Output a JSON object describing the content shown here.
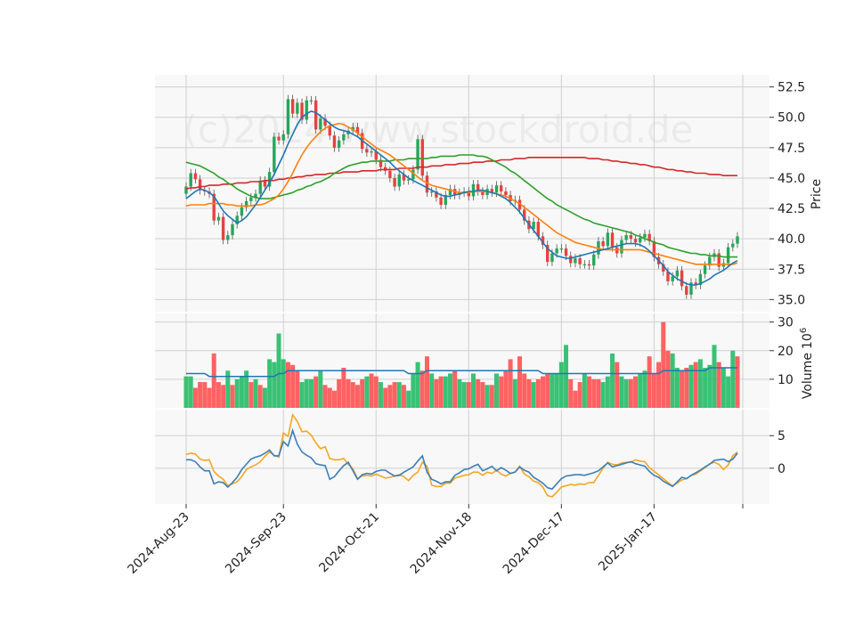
{
  "watermark": "(c)2024 www.stockdroid.de",
  "colors": {
    "panel_bg": "#f8f8f8",
    "grid": "#d0d0d0",
    "up": "#26a65b",
    "down": "#e8413f",
    "up_vol": "#2ebf6e",
    "down_vol": "#ff5a5a",
    "ma_short": "#1f77b4",
    "ma_mid": "#ff7f0e",
    "ma_long": "#2ca02c",
    "ma_200": "#d62728",
    "vol_ma": "#1f77b4",
    "osc_a": "#3a7fb8",
    "osc_b": "#f5a623"
  },
  "chart_data": {
    "type": "candlestick",
    "x_labels": [
      "2024-Aug-23",
      "2024-Sep-23",
      "2024-Oct-21",
      "2024-Nov-18",
      "2024-Dec-17",
      "2025-Jan-17"
    ],
    "x_label_index": [
      0,
      21,
      41,
      61,
      81,
      101
    ],
    "n": 120,
    "price": {
      "ylabel": "Price",
      "ylim": [
        34.0,
        53.5
      ],
      "ticks": [
        "35.0",
        "37.5",
        "40.0",
        "42.5",
        "45.0",
        "47.5",
        "50.0",
        "52.5"
      ],
      "tick_values": [
        35.0,
        37.5,
        40.0,
        42.5,
        45.0,
        47.5,
        50.0,
        52.5
      ],
      "close": [
        44.3,
        45.4,
        44.9,
        44.0,
        43.9,
        43.7,
        41.5,
        41.8,
        39.9,
        40.3,
        41.2,
        41.9,
        42.6,
        43.1,
        43.4,
        43.7,
        44.8,
        44.3,
        45.5,
        48.4,
        48.1,
        48.6,
        51.5,
        50.3,
        51.2,
        49.8,
        51.4,
        51.4,
        49.0,
        49.9,
        49.3,
        48.5,
        47.5,
        48.1,
        48.6,
        48.9,
        49.2,
        48.7,
        47.4,
        47.1,
        47.2,
        46.5,
        45.9,
        45.6,
        45.0,
        44.3,
        45.3,
        44.8,
        44.9,
        45.7,
        48.2,
        45.2,
        43.8,
        43.9,
        43.4,
        42.8,
        43.6,
        44.1,
        43.6,
        43.8,
        43.9,
        43.5,
        44.5,
        43.9,
        43.6,
        44.1,
        43.8,
        44.4,
        43.9,
        43.6,
        43.1,
        43.2,
        42.4,
        41.5,
        40.8,
        41.4,
        40.2,
        39.5,
        38.1,
        38.8,
        39.2,
        39.2,
        38.6,
        38.0,
        38.4,
        37.9,
        37.9,
        37.8,
        38.7,
        39.8,
        39.4,
        40.5,
        39.3,
        38.8,
        39.9,
        40.3,
        40.0,
        39.7,
        40.1,
        40.4,
        39.8,
        38.5,
        37.9,
        37.3,
        36.5,
        36.9,
        37.4,
        36.1,
        35.4,
        36.4,
        36.2,
        37.1,
        37.8,
        38.5,
        38.8,
        37.7,
        38.0,
        39.3,
        39.6,
        40.2
      ],
      "ma_short": [
        43.3,
        43.6,
        43.9,
        44.1,
        44.0,
        43.8,
        43.5,
        42.9,
        42.3,
        41.9,
        41.6,
        41.3,
        41.5,
        41.8,
        42.3,
        42.8,
        43.4,
        44.0,
        44.6,
        45.3,
        46.1,
        46.9,
        47.8,
        48.6,
        49.4,
        50.0,
        50.3,
        50.5,
        50.4,
        50.1,
        49.8,
        49.5,
        49.2,
        49.0,
        48.9,
        48.8,
        48.6,
        48.4,
        48.1,
        47.8,
        47.5,
        47.2,
        46.9,
        46.6,
        46.3,
        45.9,
        45.6,
        45.3,
        45.0,
        44.8,
        44.6,
        44.4,
        44.2,
        44.0,
        43.8,
        43.6,
        43.5,
        43.5,
        43.6,
        43.7,
        43.8,
        43.9,
        43.9,
        44.0,
        44.0,
        43.9,
        43.8,
        43.7,
        43.5,
        43.3,
        43.0,
        42.6,
        42.2,
        41.7,
        41.2,
        40.7,
        40.2,
        39.7,
        39.2,
        38.9,
        38.6,
        38.5,
        38.4,
        38.4,
        38.5,
        38.6,
        38.7,
        38.8,
        38.9,
        39.0,
        39.1,
        39.2,
        39.3,
        39.4,
        39.5,
        39.6,
        39.6,
        39.6,
        39.5,
        39.3,
        39.0,
        38.6,
        38.2,
        37.8,
        37.3,
        37.0,
        36.7,
        36.5,
        36.3,
        36.2,
        36.2,
        36.3,
        36.5,
        36.7,
        37.0,
        37.2,
        37.4,
        37.7,
        38.0,
        38.2
      ],
      "ma_mid": [
        42.7,
        42.8,
        42.8,
        42.8,
        42.8,
        42.9,
        42.9,
        42.9,
        42.9,
        42.8,
        42.8,
        42.7,
        42.7,
        42.7,
        42.7,
        42.8,
        42.8,
        42.9,
        43.1,
        43.3,
        43.6,
        44.1,
        44.7,
        45.4,
        46.2,
        46.9,
        47.5,
        48.0,
        48.4,
        48.8,
        49.1,
        49.3,
        49.4,
        49.5,
        49.4,
        49.2,
        49.0,
        48.7,
        48.4,
        48.1,
        47.8,
        47.5,
        47.3,
        47.1,
        46.9,
        46.6,
        46.3,
        46.0,
        45.7,
        45.4,
        45.1,
        44.8,
        44.6,
        44.4,
        44.3,
        44.2,
        44.1,
        44.0,
        43.9,
        43.8,
        43.8,
        43.8,
        43.9,
        43.9,
        43.9,
        43.9,
        43.8,
        43.7,
        43.6,
        43.5,
        43.3,
        43.1,
        42.9,
        42.6,
        42.3,
        42.0,
        41.7,
        41.4,
        41.1,
        40.8,
        40.5,
        40.3,
        40.1,
        39.9,
        39.7,
        39.6,
        39.5,
        39.4,
        39.3,
        39.2,
        39.1,
        39.1,
        39.1,
        39.1,
        39.1,
        39.1,
        39.1,
        39.1,
        39.1,
        39.0,
        38.9,
        38.8,
        38.7,
        38.6,
        38.5,
        38.4,
        38.3,
        38.2,
        38.1,
        38.0,
        37.9,
        37.9,
        37.9,
        37.9,
        37.9,
        37.9,
        37.9,
        37.9,
        37.9,
        38.0
      ],
      "ma_long": [
        46.3,
        46.2,
        46.1,
        46.0,
        45.8,
        45.6,
        45.4,
        45.1,
        44.9,
        44.6,
        44.4,
        44.1,
        43.9,
        43.7,
        43.5,
        43.4,
        43.3,
        43.3,
        43.3,
        43.4,
        43.5,
        43.6,
        43.7,
        43.8,
        44.0,
        44.1,
        44.3,
        44.4,
        44.6,
        44.7,
        44.9,
        45.1,
        45.4,
        45.6,
        45.8,
        46.0,
        46.1,
        46.2,
        46.3,
        46.3,
        46.4,
        46.4,
        46.4,
        46.4,
        46.4,
        46.5,
        46.5,
        46.5,
        46.6,
        46.6,
        46.6,
        46.6,
        46.6,
        46.7,
        46.7,
        46.8,
        46.8,
        46.8,
        46.8,
        46.9,
        46.9,
        46.9,
        46.9,
        46.8,
        46.8,
        46.7,
        46.5,
        46.3,
        46.1,
        45.9,
        45.6,
        45.4,
        45.1,
        44.8,
        44.5,
        44.2,
        43.9,
        43.6,
        43.3,
        43.1,
        42.8,
        42.6,
        42.4,
        42.2,
        42.0,
        41.8,
        41.6,
        41.5,
        41.3,
        41.2,
        41.1,
        41.0,
        40.9,
        40.8,
        40.7,
        40.6,
        40.5,
        40.3,
        40.2,
        40.0,
        39.9,
        39.7,
        39.6,
        39.5,
        39.3,
        39.2,
        39.1,
        39.0,
        38.9,
        38.8,
        38.8,
        38.7,
        38.7,
        38.6,
        38.6,
        38.6,
        38.5,
        38.5,
        38.5,
        38.5
      ],
      "ma_200": [
        44.1,
        44.2,
        44.2,
        44.3,
        44.3,
        44.4,
        44.4,
        44.4,
        44.5,
        44.5,
        44.5,
        44.6,
        44.6,
        44.6,
        44.7,
        44.7,
        44.7,
        44.8,
        44.8,
        44.8,
        44.9,
        44.9,
        45.0,
        45.0,
        45.1,
        45.1,
        45.2,
        45.2,
        45.3,
        45.3,
        45.3,
        45.4,
        45.4,
        45.4,
        45.5,
        45.5,
        45.5,
        45.5,
        45.6,
        45.6,
        45.6,
        45.6,
        45.7,
        45.7,
        45.7,
        45.7,
        45.8,
        45.8,
        45.8,
        45.8,
        45.9,
        45.9,
        45.9,
        46.0,
        46.0,
        46.0,
        46.1,
        46.1,
        46.1,
        46.2,
        46.2,
        46.2,
        46.3,
        46.3,
        46.3,
        46.4,
        46.4,
        46.4,
        46.5,
        46.5,
        46.5,
        46.6,
        46.6,
        46.6,
        46.7,
        46.7,
        46.7,
        46.7,
        46.7,
        46.7,
        46.7,
        46.7,
        46.7,
        46.7,
        46.7,
        46.7,
        46.7,
        46.6,
        46.6,
        46.6,
        46.5,
        46.5,
        46.4,
        46.4,
        46.3,
        46.3,
        46.2,
        46.2,
        46.1,
        46.1,
        46.0,
        45.9,
        45.9,
        45.8,
        45.7,
        45.7,
        45.6,
        45.6,
        45.5,
        45.5,
        45.4,
        45.4,
        45.4,
        45.3,
        45.3,
        45.3,
        45.2,
        45.2,
        45.2,
        45.2
      ]
    },
    "volume": {
      "ylabel": "Volume  10^6",
      "ylabel_main": "Volume",
      "ylabel_exp": "6",
      "ylim": [
        0,
        33
      ],
      "ticks": [
        "10",
        "20",
        "30"
      ],
      "tick_values": [
        10,
        20,
        30
      ],
      "values": [
        11,
        11,
        7,
        9,
        9,
        7,
        19,
        9,
        8,
        13,
        8,
        10,
        11,
        13,
        9,
        10,
        8,
        7,
        17,
        16,
        26,
        17,
        16,
        15,
        13,
        9,
        10,
        10,
        11,
        13,
        8,
        7,
        6,
        10,
        14,
        10,
        9,
        8,
        10,
        11,
        12,
        11,
        9,
        7,
        8,
        9,
        9,
        8,
        6,
        12,
        16,
        13,
        18,
        12,
        10,
        11,
        11,
        12,
        13,
        10,
        9,
        9,
        12,
        10,
        9,
        8,
        8,
        12,
        11,
        13,
        17,
        10,
        18,
        12,
        10,
        9,
        10,
        11,
        12,
        12,
        12,
        16,
        22,
        10,
        6,
        9,
        12,
        11,
        10,
        10,
        9,
        11,
        19,
        16,
        11,
        10,
        10,
        11,
        12,
        13,
        18,
        12,
        16,
        30,
        20,
        19,
        14,
        13,
        14,
        15,
        16,
        17,
        14,
        15,
        22,
        16,
        14,
        11,
        20,
        18
      ],
      "up": [
        1,
        1,
        0,
        0,
        0,
        0,
        0,
        0,
        0,
        1,
        0,
        1,
        1,
        1,
        0,
        1,
        0,
        1,
        1,
        1,
        1,
        1,
        0,
        0,
        0,
        1,
        1,
        1,
        0,
        1,
        0,
        0,
        0,
        0,
        0,
        0,
        0,
        0,
        0,
        1,
        0,
        0,
        1,
        0,
        0,
        0,
        1,
        0,
        1,
        1,
        1,
        0,
        0,
        1,
        0,
        0,
        1,
        1,
        0,
        1,
        1,
        0,
        1,
        0,
        0,
        1,
        0,
        1,
        0,
        0,
        0,
        1,
        0,
        0,
        0,
        1,
        0,
        0,
        0,
        1,
        1,
        1,
        1,
        0,
        0,
        0,
        1,
        0,
        0,
        0,
        1,
        1,
        1,
        0,
        1,
        1,
        0,
        0,
        1,
        1,
        0,
        0,
        0,
        0,
        0,
        1,
        1,
        0,
        0,
        1,
        0,
        1,
        1,
        1,
        1,
        0,
        1,
        1,
        1,
        0
      ],
      "ma": [
        12,
        12,
        12,
        12,
        12,
        11,
        11,
        11,
        11,
        11,
        11,
        11,
        11,
        11,
        11,
        11,
        11,
        11,
        11,
        11,
        12,
        12,
        13,
        13,
        13,
        13,
        13,
        13,
        13,
        13,
        13,
        13,
        13,
        13,
        13,
        13,
        13,
        13,
        13,
        13,
        13,
        13,
        13,
        13,
        13,
        13,
        13,
        13,
        12,
        12,
        12,
        12,
        13,
        13,
        13,
        13,
        13,
        13,
        13,
        13,
        13,
        13,
        13,
        13,
        13,
        13,
        13,
        13,
        13,
        13,
        13,
        13,
        13,
        13,
        13,
        13,
        13,
        12,
        12,
        12,
        12,
        12,
        12,
        12,
        12,
        12,
        12,
        12,
        12,
        12,
        12,
        12,
        12,
        12,
        12,
        12,
        12,
        12,
        12,
        12,
        12,
        12,
        12,
        13,
        13,
        13,
        13,
        13,
        13,
        13,
        13,
        13,
        13,
        14,
        14,
        14,
        14,
        14,
        14,
        14
      ]
    },
    "oscillator": {
      "ylim": [
        -5.5,
        9.0
      ],
      "ticks": [
        "0",
        "5"
      ],
      "tick_values": [
        0,
        5
      ],
      "line_a": [
        1.3,
        1.3,
        1.0,
        0.2,
        -0.4,
        -0.4,
        -2.4,
        -2.1,
        -2.2,
        -2.9,
        -2.2,
        -1.4,
        -0.2,
        0.6,
        1.4,
        1.7,
        1.9,
        2.3,
        2.8,
        1.9,
        1.9,
        4.1,
        3.4,
        5.8,
        3.7,
        2.5,
        2.0,
        1.6,
        0.7,
        0.5,
        0.4,
        -1.7,
        -1.3,
        -0.4,
        0.4,
        0.9,
        -0.4,
        -1.7,
        -1.0,
        -0.8,
        -0.9,
        -0.5,
        -0.3,
        -0.3,
        -0.8,
        -1.2,
        -1.1,
        -0.6,
        -0.2,
        0.2,
        1.1,
        1.9,
        -0.6,
        -1.7,
        -2.0,
        -2.4,
        -2.1,
        -2.1,
        -1.1,
        -0.7,
        -0.2,
        -0.1,
        0.3,
        0.6,
        -0.4,
        -0.1,
        0.3,
        -0.4,
        0.1,
        -0.3,
        -0.8,
        -0.6,
        0.2,
        -0.3,
        -0.6,
        -1.4,
        -1.8,
        -2.3,
        -3.0,
        -3.2,
        -2.4,
        -1.6,
        -1.2,
        -1.1,
        -1.0,
        -1.0,
        -1.1,
        -0.9,
        -0.7,
        -0.4,
        0.2,
        0.8,
        0.2,
        0.4,
        0.6,
        0.8,
        1.0,
        0.7,
        0.5,
        0.3,
        -0.5,
        -1.1,
        -1.4,
        -2.0,
        -2.4,
        -2.8,
        -2.1,
        -1.4,
        -1.6,
        -1.1,
        -0.7,
        -0.3,
        0.2,
        0.6,
        1.2,
        1.3,
        1.4,
        1.0,
        1.4,
        2.3
      ],
      "line_b": [
        2.1,
        2.3,
        2.2,
        1.4,
        1.2,
        1.3,
        -0.5,
        -1.2,
        -1.7,
        -2.7,
        -2.4,
        -2.1,
        -1.3,
        -0.2,
        0.2,
        0.5,
        1.0,
        1.8,
        2.5,
        2.0,
        1.7,
        5.4,
        4.9,
        8.2,
        7.2,
        5.6,
        5.7,
        5.1,
        3.9,
        3.0,
        3.3,
        1.5,
        1.3,
        1.3,
        1.5,
        0.6,
        -0.1,
        -1.6,
        -1.2,
        -1.1,
        -1.2,
        -0.9,
        -1.2,
        -1.5,
        -1.4,
        -1.2,
        -1.0,
        -1.3,
        -1.9,
        -1.1,
        -0.6,
        0.9,
        0.3,
        -2.6,
        -2.8,
        -2.8,
        -2.3,
        -2.3,
        -1.5,
        -1.3,
        -1.1,
        -1.0,
        -0.6,
        -0.6,
        -1.1,
        -0.6,
        -0.8,
        -0.3,
        -0.9,
        -1.2,
        -0.8,
        -0.6,
        0.3,
        -0.9,
        -1.3,
        -2.0,
        -2.2,
        -2.9,
        -4.2,
        -4.4,
        -3.7,
        -2.9,
        -2.7,
        -2.5,
        -2.6,
        -2.4,
        -2.5,
        -2.2,
        -2.2,
        -1.1,
        0.0,
        0.9,
        0.6,
        0.5,
        0.8,
        0.9,
        0.9,
        1.3,
        1.1,
        1.0,
        0.1,
        -0.5,
        -1.0,
        -1.6,
        -2.2,
        -2.7,
        -2.3,
        -1.8,
        -1.6,
        -1.1,
        -0.9,
        -0.4,
        0.1,
        0.7,
        0.9,
        0.6,
        -0.2,
        0.5,
        1.9,
        2.5
      ]
    }
  }
}
